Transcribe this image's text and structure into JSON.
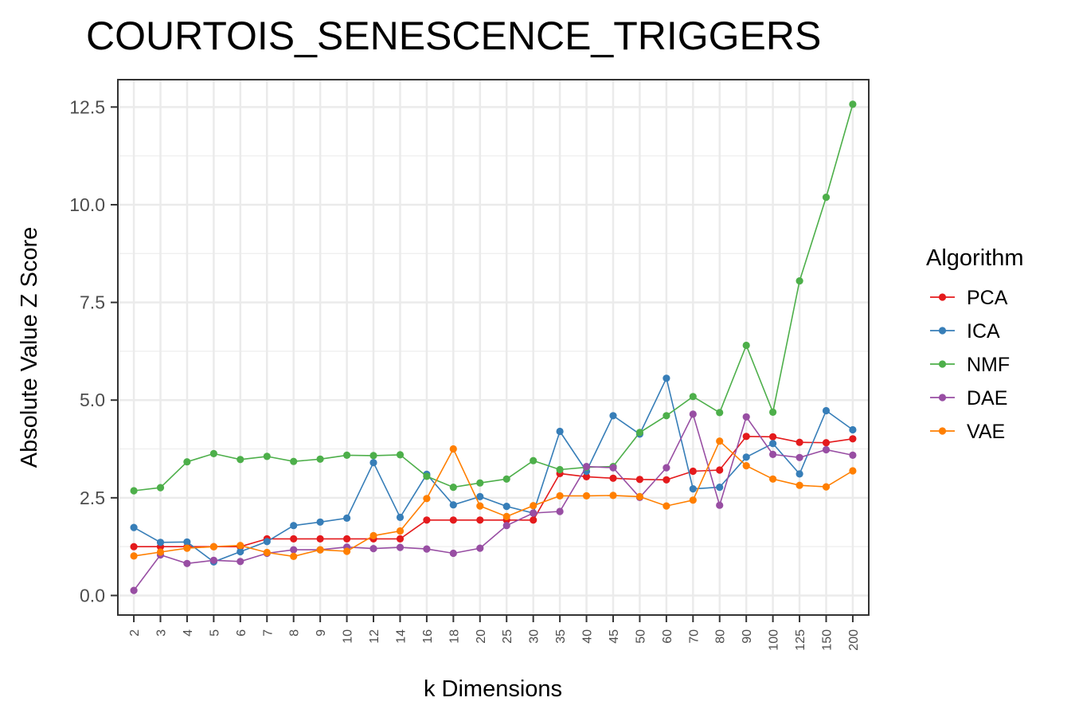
{
  "chart_data": {
    "type": "line",
    "title": "COURTOIS_SENESCENCE_TRIGGERS",
    "xlabel": "k Dimensions",
    "ylabel": "Absolute Value Z Score",
    "categories": [
      "2",
      "3",
      "4",
      "5",
      "6",
      "7",
      "8",
      "9",
      "10",
      "12",
      "14",
      "16",
      "18",
      "20",
      "25",
      "30",
      "35",
      "40",
      "45",
      "50",
      "60",
      "70",
      "80",
      "90",
      "100",
      "125",
      "150",
      "200"
    ],
    "ylim": [
      -0.5,
      13.2
    ],
    "yticks": [
      "0.0",
      "2.5",
      "5.0",
      "7.5",
      "10.0",
      "12.5"
    ],
    "ytick_values": [
      0,
      2.5,
      5,
      7.5,
      10,
      12.5
    ],
    "grid": true,
    "legend": {
      "title": "Algorithm",
      "position": "right"
    },
    "series": [
      {
        "name": "PCA",
        "color": "#e41a1c",
        "values": [
          1.25,
          1.25,
          1.25,
          1.25,
          1.25,
          1.45,
          1.45,
          1.45,
          1.45,
          1.45,
          1.45,
          1.93,
          1.93,
          1.93,
          1.93,
          1.93,
          3.12,
          3.04,
          3.0,
          2.97,
          2.96,
          3.18,
          3.21,
          4.07,
          4.06,
          3.92,
          3.91,
          4.01
        ]
      },
      {
        "name": "ICA",
        "color": "#377eb8",
        "values": [
          1.74,
          1.36,
          1.37,
          0.86,
          1.12,
          1.38,
          1.79,
          1.88,
          1.98,
          3.4,
          2.0,
          3.1,
          2.32,
          2.53,
          2.28,
          2.11,
          4.2,
          3.18,
          4.6,
          4.13,
          5.56,
          2.73,
          2.77,
          3.54,
          3.89,
          3.11,
          4.73,
          4.24
        ]
      },
      {
        "name": "NMF",
        "color": "#4daf4a",
        "values": [
          2.68,
          2.76,
          3.42,
          3.63,
          3.48,
          3.56,
          3.43,
          3.49,
          3.59,
          3.58,
          3.6,
          3.05,
          2.77,
          2.88,
          2.98,
          3.45,
          3.22,
          3.28,
          3.3,
          4.17,
          4.6,
          5.09,
          4.68,
          6.4,
          4.69,
          8.05,
          10.19,
          12.57
        ]
      },
      {
        "name": "DAE",
        "color": "#984ea3",
        "values": [
          0.13,
          1.04,
          0.82,
          0.9,
          0.87,
          1.08,
          1.17,
          1.17,
          1.24,
          1.2,
          1.23,
          1.19,
          1.08,
          1.21,
          1.79,
          2.11,
          2.15,
          3.3,
          3.27,
          2.51,
          3.27,
          4.64,
          2.31,
          4.57,
          3.61,
          3.53,
          3.73,
          3.59
        ]
      },
      {
        "name": "VAE",
        "color": "#ff7f00",
        "values": [
          1.01,
          1.11,
          1.21,
          1.25,
          1.28,
          1.1,
          1.0,
          1.17,
          1.13,
          1.53,
          1.65,
          2.48,
          3.75,
          2.29,
          2.02,
          2.3,
          2.55,
          2.55,
          2.56,
          2.53,
          2.29,
          2.44,
          3.95,
          3.32,
          2.98,
          2.82,
          2.78,
          3.19
        ]
      }
    ]
  }
}
